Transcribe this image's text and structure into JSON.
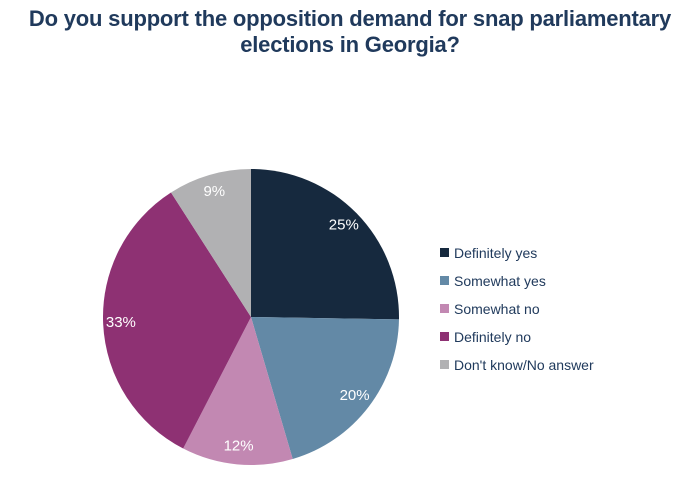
{
  "chart_data": {
    "type": "pie",
    "title": "Do you support the opposition demand for snap parliamentary elections in Georgia?",
    "title_lines": [
      "Do you support the opposition demand for snap parliamentary",
      "elections in Georgia?"
    ],
    "slices": [
      {
        "label": "Definitely yes",
        "value": 25,
        "display": "25%",
        "color": "#16293e"
      },
      {
        "label": "Somewhat yes",
        "value": 20,
        "display": "20%",
        "color": "#6389a6"
      },
      {
        "label": "Somewhat no",
        "value": 12,
        "display": "12%",
        "color": "#c288b2"
      },
      {
        "label": "Definitely no",
        "value": 33,
        "display": "33%",
        "color": "#8e3173"
      },
      {
        "label": "Don't know/No answer",
        "value": 9,
        "display": "9%",
        "color": "#b1b1b3"
      }
    ],
    "start_angle_deg": 0,
    "direction": "clockwise",
    "legend_position": "right",
    "value_label_color": "#ffffff",
    "title_color": "#203a5c",
    "legend_text_color": "#203a5c",
    "background_color": "#ffffff"
  }
}
